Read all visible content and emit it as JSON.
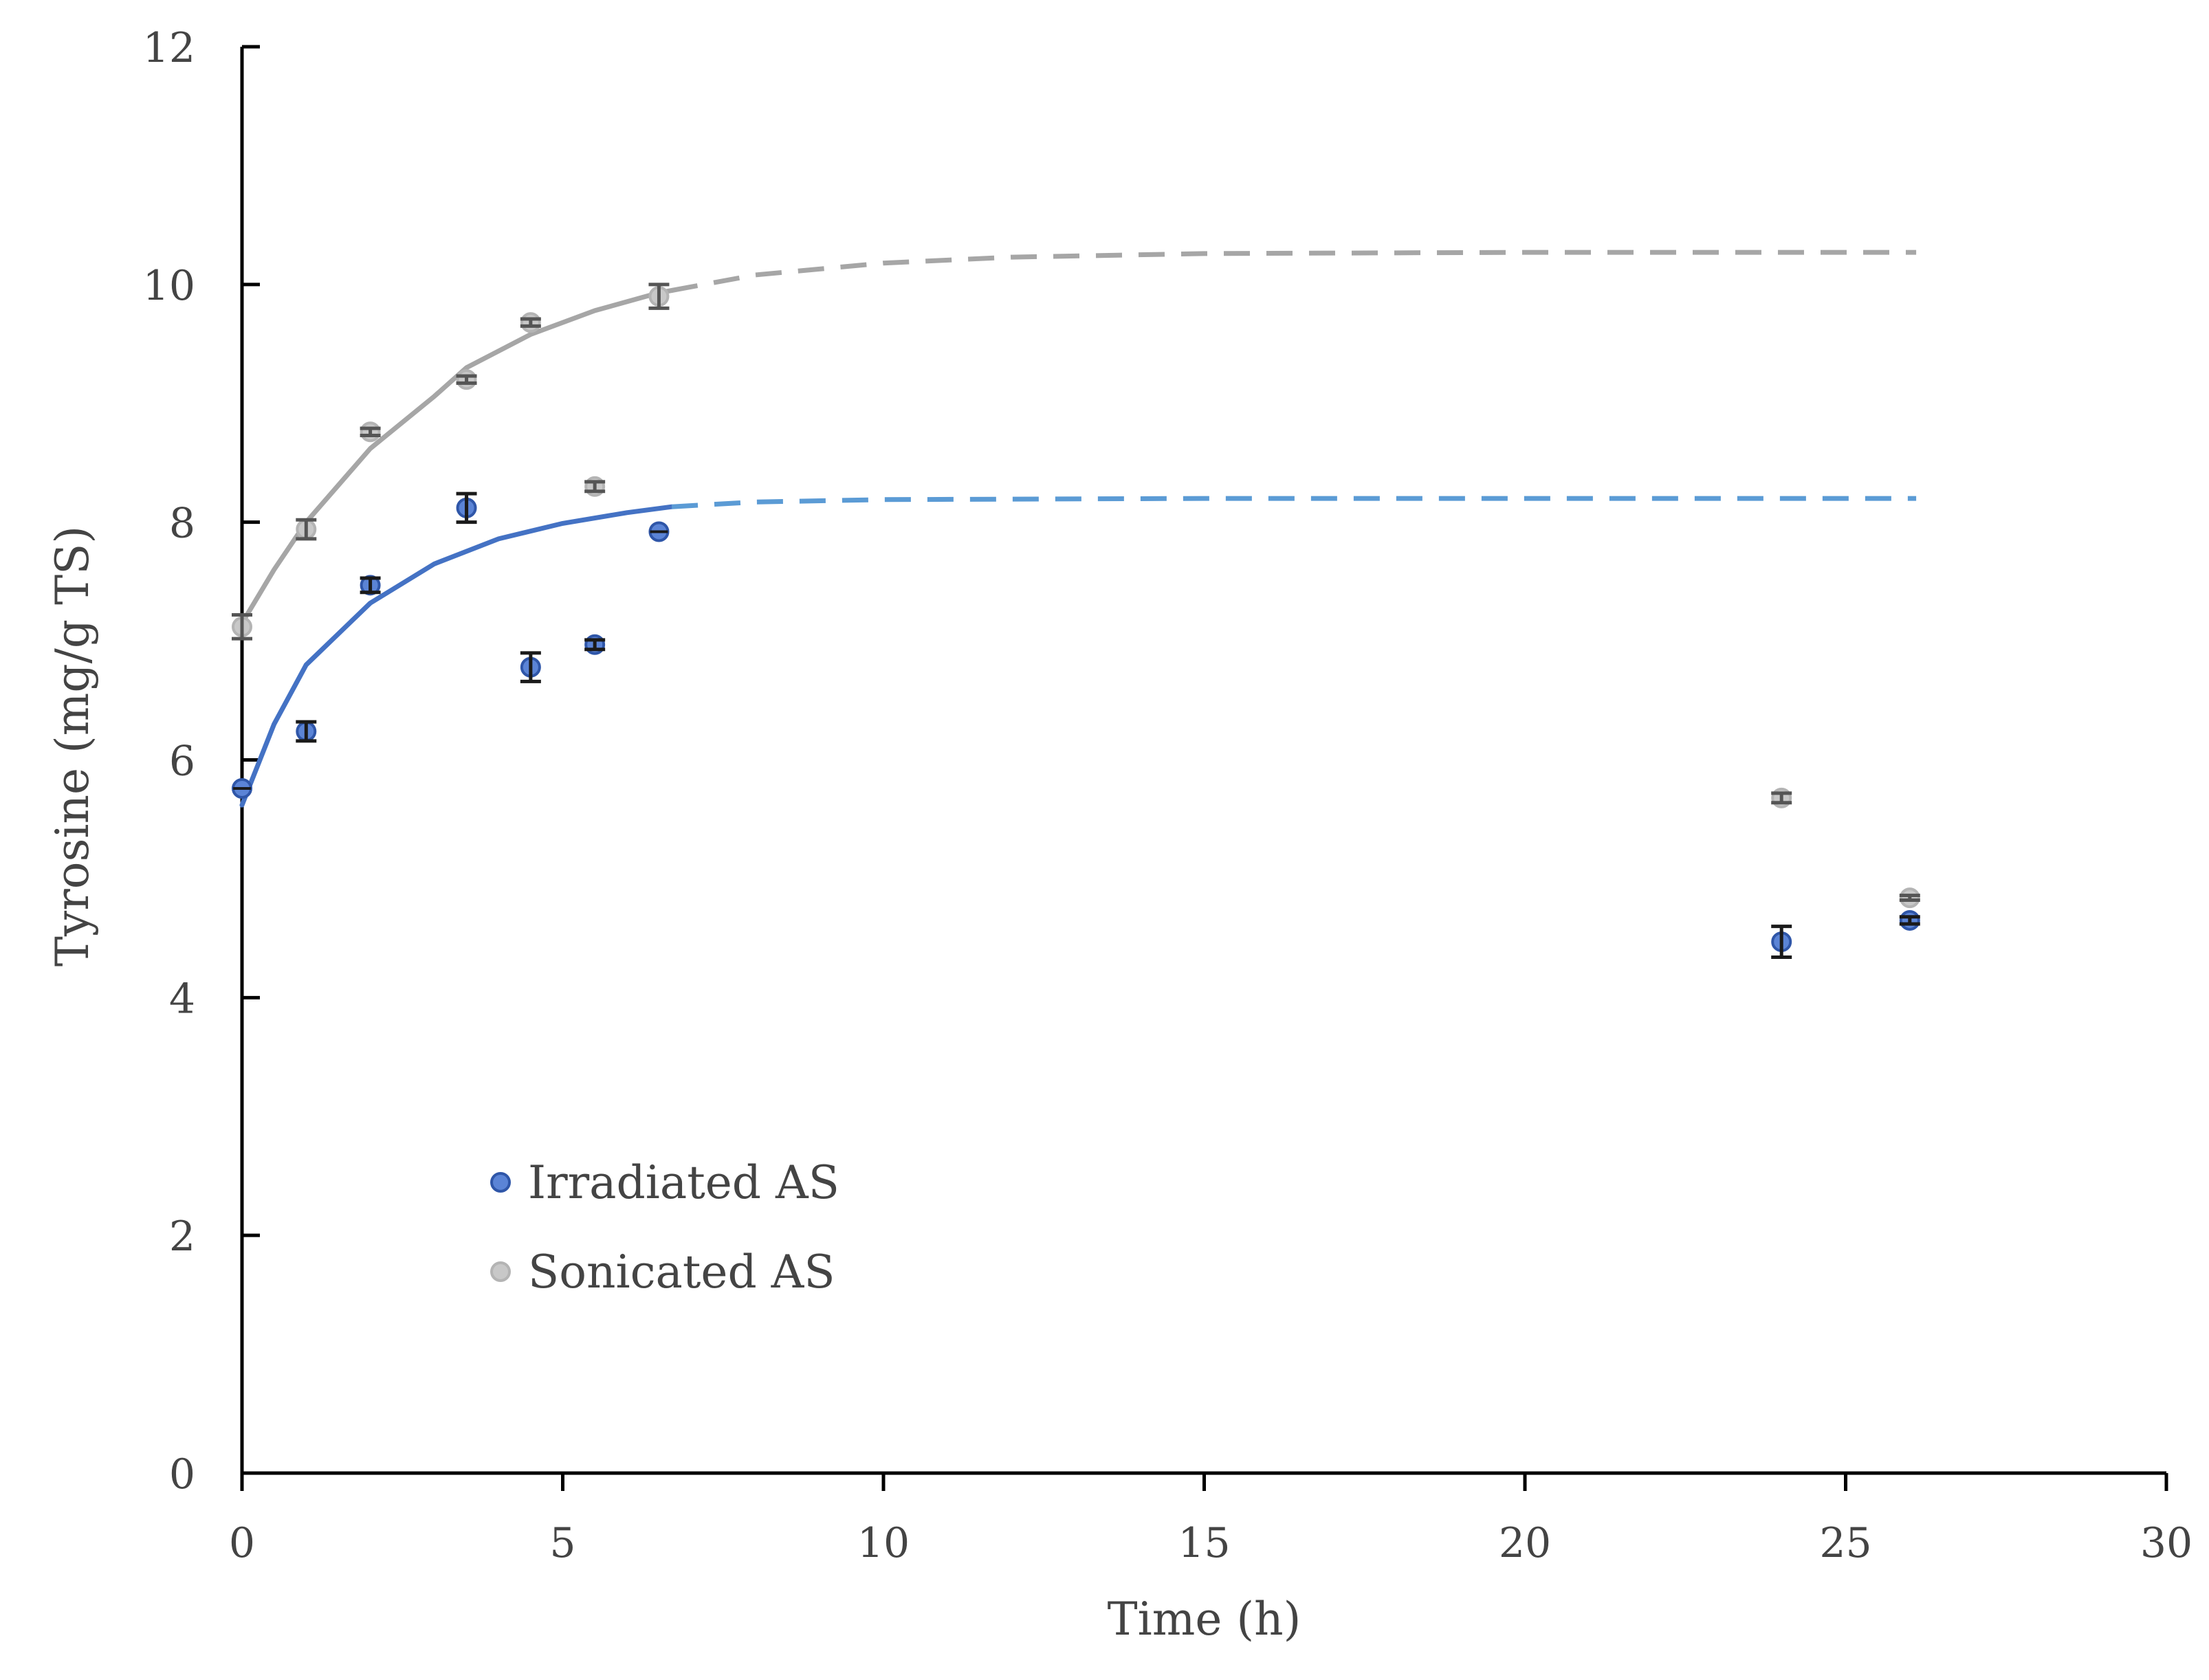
{
  "chart_data": {
    "type": "scatter",
    "title": "",
    "xlabel": "Time (h)",
    "ylabel": "Tyrosine (mg/g TS)",
    "xlim": [
      0,
      30
    ],
    "ylim": [
      0,
      12
    ],
    "xticks": [
      0,
      5,
      10,
      15,
      20,
      25,
      30
    ],
    "yticks": [
      0,
      2,
      4,
      6,
      8,
      10,
      12
    ],
    "grid": false,
    "legend_position": "bottom-left",
    "series": [
      {
        "name": "Irradiated AS",
        "marker_fill": "#5b84d6",
        "marker_stroke": "#2f56a8",
        "errorbar_color": "#1a1a1a",
        "fit_color": "#4472c4",
        "extrap_color": "#5b9bd5",
        "points": [
          {
            "x": 0,
            "y": 5.76,
            "err": 0.0
          },
          {
            "x": 1,
            "y": 6.24,
            "err": 0.08
          },
          {
            "x": 2,
            "y": 7.47,
            "err": 0.06
          },
          {
            "x": 3.5,
            "y": 8.12,
            "err": 0.12
          },
          {
            "x": 4.5,
            "y": 6.78,
            "err": 0.12
          },
          {
            "x": 5.5,
            "y": 6.97,
            "err": 0.04
          },
          {
            "x": 6.5,
            "y": 7.92,
            "err": 0.0
          },
          {
            "x": 24,
            "y": 4.47,
            "err": 0.13
          },
          {
            "x": 26,
            "y": 4.65,
            "err": 0.03
          }
        ],
        "fit_solid": [
          [
            0,
            5.62
          ],
          [
            0.5,
            6.3
          ],
          [
            1,
            6.8
          ],
          [
            2,
            7.32
          ],
          [
            3,
            7.65
          ],
          [
            4,
            7.86
          ],
          [
            5,
            7.99
          ],
          [
            6,
            8.08
          ],
          [
            6.7,
            8.13
          ]
        ],
        "fit_dashed": [
          [
            6.7,
            8.13
          ],
          [
            8,
            8.17
          ],
          [
            10,
            8.19
          ],
          [
            15,
            8.2
          ],
          [
            20,
            8.2
          ],
          [
            26.1,
            8.2
          ]
        ]
      },
      {
        "name": "Sonicated AS",
        "marker_fill": "#c8c8c8",
        "marker_stroke": "#b4b4b4",
        "errorbar_color": "#555555",
        "fit_color": "#a6a6a6",
        "extrap_color": "#a6a6a6",
        "points": [
          {
            "x": 0,
            "y": 7.12,
            "err": 0.1
          },
          {
            "x": 1,
            "y": 7.94,
            "err": 0.08
          },
          {
            "x": 2,
            "y": 8.76,
            "err": 0.03
          },
          {
            "x": 3.5,
            "y": 9.2,
            "err": 0.03
          },
          {
            "x": 4.5,
            "y": 9.68,
            "err": 0.03
          },
          {
            "x": 5.5,
            "y": 8.3,
            "err": 0.04
          },
          {
            "x": 6.5,
            "y": 9.9,
            "err": 0.1
          },
          {
            "x": 24,
            "y": 5.68,
            "err": 0.04
          },
          {
            "x": 26,
            "y": 4.84,
            "err": 0.02
          }
        ],
        "fit_solid": [
          [
            0,
            7.15
          ],
          [
            0.5,
            7.6
          ],
          [
            1,
            8.0
          ],
          [
            2,
            8.62
          ],
          [
            3,
            9.06
          ],
          [
            3.5,
            9.3
          ],
          [
            4.5,
            9.58
          ],
          [
            5.5,
            9.78
          ],
          [
            6.5,
            9.93
          ],
          [
            6.7,
            9.95
          ]
        ],
        "fit_dashed": [
          [
            6.7,
            9.95
          ],
          [
            8,
            10.08
          ],
          [
            10,
            10.18
          ],
          [
            12,
            10.23
          ],
          [
            15,
            10.26
          ],
          [
            20,
            10.27
          ],
          [
            26.1,
            10.27
          ]
        ]
      }
    ]
  }
}
